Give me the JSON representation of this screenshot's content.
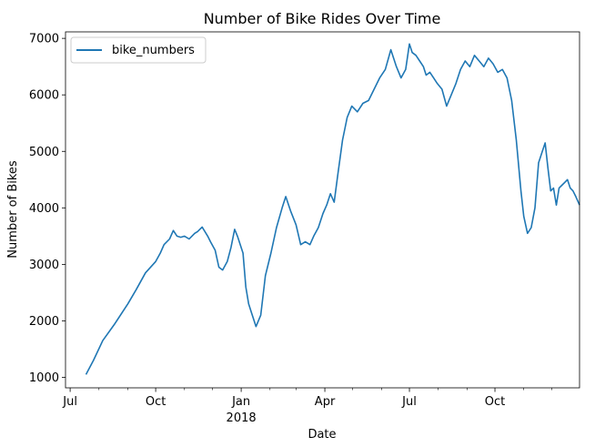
{
  "chart_data": {
    "type": "line",
    "title": "Number of Bike Rides Over Time",
    "xlabel": "Date",
    "ylabel": "Number of Bikes",
    "x_range": [
      "2017-06-26",
      "2018-12-31"
    ],
    "ylim": [
      815,
      7115
    ],
    "grid": false,
    "legend": "top-left",
    "colors": {
      "series": "#1f77b4",
      "axis": "#000000"
    },
    "x_ticks": [
      {
        "date": "2017-07-01",
        "label": "Jul",
        "sublabel": ""
      },
      {
        "date": "2017-10-01",
        "label": "Oct",
        "sublabel": ""
      },
      {
        "date": "2018-01-01",
        "label": "Jan",
        "sublabel": "2018"
      },
      {
        "date": "2018-04-01",
        "label": "Apr",
        "sublabel": ""
      },
      {
        "date": "2018-07-01",
        "label": "Jul",
        "sublabel": ""
      },
      {
        "date": "2018-10-01",
        "label": "Oct",
        "sublabel": ""
      }
    ],
    "x_minor_ticks": [
      "2017-08-01",
      "2017-09-01",
      "2017-11-01",
      "2017-12-01",
      "2018-02-01",
      "2018-03-01",
      "2018-05-01",
      "2018-06-01",
      "2018-08-01",
      "2018-09-01",
      "2018-11-01",
      "2018-12-01"
    ],
    "y_ticks": [
      1000,
      2000,
      3000,
      4000,
      5000,
      6000,
      7000
    ],
    "series": [
      {
        "name": "bike_numbers",
        "x": [
          "2017-07-18",
          "2017-07-26",
          "2017-08-05",
          "2017-08-18",
          "2017-09-01",
          "2017-09-10",
          "2017-09-20",
          "2017-10-01",
          "2017-10-06",
          "2017-10-10",
          "2017-10-16",
          "2017-10-20",
          "2017-10-24",
          "2017-10-28",
          "2017-11-01",
          "2017-11-06",
          "2017-11-12",
          "2017-11-15",
          "2017-11-20",
          "2017-11-26",
          "2017-11-29",
          "2017-12-04",
          "2017-12-08",
          "2017-12-12",
          "2017-12-17",
          "2017-12-21",
          "2017-12-25",
          "2017-12-28",
          "2018-01-03",
          "2018-01-06",
          "2018-01-09",
          "2018-01-12",
          "2018-01-17",
          "2018-01-22",
          "2018-01-27",
          "2018-02-02",
          "2018-02-08",
          "2018-02-14",
          "2018-02-18",
          "2018-02-23",
          "2018-03-01",
          "2018-03-06",
          "2018-03-11",
          "2018-03-16",
          "2018-03-20",
          "2018-03-25",
          "2018-03-30",
          "2018-04-03",
          "2018-04-07",
          "2018-04-11",
          "2018-04-15",
          "2018-04-20",
          "2018-04-25",
          "2018-04-30",
          "2018-05-06",
          "2018-05-12",
          "2018-05-18",
          "2018-05-24",
          "2018-05-30",
          "2018-06-05",
          "2018-06-11",
          "2018-06-17",
          "2018-06-22",
          "2018-06-27",
          "2018-07-01",
          "2018-07-04",
          "2018-07-08",
          "2018-07-12",
          "2018-07-16",
          "2018-07-19",
          "2018-07-23",
          "2018-07-27",
          "2018-07-31",
          "2018-08-05",
          "2018-08-10",
          "2018-08-15",
          "2018-08-20",
          "2018-08-25",
          "2018-08-30",
          "2018-09-04",
          "2018-09-09",
          "2018-09-14",
          "2018-09-19",
          "2018-09-24",
          "2018-09-29",
          "2018-10-04",
          "2018-10-09",
          "2018-10-14",
          "2018-10-19",
          "2018-10-24",
          "2018-10-29",
          "2018-11-01",
          "2018-11-05",
          "2018-11-09",
          "2018-11-13",
          "2018-11-17",
          "2018-11-21",
          "2018-11-24",
          "2018-11-27",
          "2018-11-30",
          "2018-12-03",
          "2018-12-06",
          "2018-12-09",
          "2018-12-12",
          "2018-12-15",
          "2018-12-18",
          "2018-12-21",
          "2018-12-24",
          "2018-12-27",
          "2018-12-31"
        ],
        "values": [
          1050,
          1300,
          1650,
          1950,
          2300,
          2550,
          2850,
          3050,
          3200,
          3350,
          3450,
          3600,
          3500,
          3480,
          3500,
          3450,
          3550,
          3580,
          3660,
          3500,
          3400,
          3250,
          2950,
          2900,
          3050,
          3300,
          3620,
          3500,
          3200,
          2600,
          2300,
          2150,
          1900,
          2100,
          2800,
          3200,
          3650,
          4000,
          4200,
          3950,
          3700,
          3350,
          3400,
          3350,
          3500,
          3650,
          3900,
          4050,
          4250,
          4100,
          4600,
          5200,
          5600,
          5800,
          5700,
          5850,
          5900,
          6100,
          6300,
          6450,
          6800,
          6500,
          6300,
          6450,
          6900,
          6750,
          6700,
          6600,
          6500,
          6350,
          6400,
          6300,
          6200,
          6100,
          5800,
          6000,
          6200,
          6450,
          6600,
          6500,
          6700,
          6600,
          6500,
          6650,
          6550,
          6400,
          6450,
          6300,
          5900,
          5200,
          4300,
          3850,
          3550,
          3650,
          4000,
          4800,
          5000,
          5150,
          4700,
          4300,
          4350,
          4050,
          4350,
          4400,
          4450,
          4500,
          4350,
          4300,
          4200,
          4050
        ]
      }
    ]
  }
}
